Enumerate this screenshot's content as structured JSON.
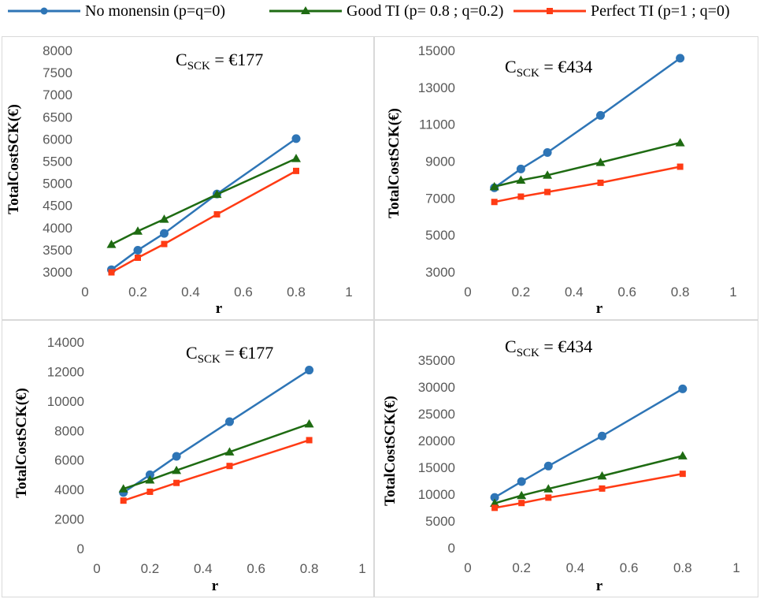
{
  "legend": [
    {
      "label": "No monensin  (p=q=0)",
      "color": "#2E75B6",
      "marker": "circle"
    },
    {
      "label": "Good TI (p= 0.8 ; q=0.2)",
      "color": "#1E6B12",
      "marker": "triangle"
    },
    {
      "label": "Perfect TI (p=1 ; q=0)",
      "color": "#FF3B14",
      "marker": "square"
    }
  ],
  "chart_data": [
    {
      "type": "line",
      "annotation": {
        "main": "C",
        "sub": "SCK",
        "value": " = €177"
      },
      "xlabel": "r",
      "ylabel": "TotalCostSCK(€)",
      "xlim": [
        0,
        1
      ],
      "ylim": [
        3000,
        8000
      ],
      "xticks": [
        "0",
        "0.2",
        "0.4",
        "0.6",
        "0.8",
        "1"
      ],
      "yticks": [
        "3000",
        "3500",
        "4000",
        "4500",
        "5000",
        "5500",
        "6000",
        "6500",
        "7000",
        "7500",
        "8000"
      ],
      "x": [
        0.1,
        0.2,
        0.3,
        0.5,
        0.8
      ],
      "series": [
        {
          "name": "No monensin  (p=q=0)",
          "values": [
            3050,
            3490,
            3870,
            4760,
            6010
          ]
        },
        {
          "name": "Good TI (p= 0.8 ; q=0.2)",
          "values": [
            3620,
            3920,
            4190,
            4750,
            5560
          ]
        },
        {
          "name": "Perfect TI (p=1 ; q=0)",
          "values": [
            2990,
            3320,
            3630,
            4300,
            5280
          ]
        }
      ]
    },
    {
      "type": "line",
      "annotation": {
        "main": "C",
        "sub": "SCK",
        "value": " = €434"
      },
      "xlabel": "r",
      "ylabel": "TotalCostSCK(€)",
      "xlim": [
        0,
        1
      ],
      "ylim": [
        3000,
        15000
      ],
      "xticks": [
        "0",
        "0.2",
        "0.4",
        "0.6",
        "0.8",
        "1"
      ],
      "yticks": [
        "3000",
        "5000",
        "7000",
        "9000",
        "11000",
        "13000",
        "15000"
      ],
      "x": [
        0.1,
        0.2,
        0.3,
        0.5,
        0.8
      ],
      "series": [
        {
          "name": "No monensin  (p=q=0)",
          "values": [
            7560,
            8580,
            9470,
            11480,
            14580
          ]
        },
        {
          "name": "Good TI (p= 0.8 ; q=0.2)",
          "values": [
            7620,
            7970,
            8240,
            8930,
            10000
          ]
        },
        {
          "name": "Perfect TI (p=1 ; q=0)",
          "values": [
            6790,
            7080,
            7330,
            7830,
            8700
          ]
        }
      ]
    },
    {
      "type": "line",
      "annotation": {
        "main": "C",
        "sub": "SCK",
        "value": " = €177"
      },
      "xlabel": "r",
      "ylabel": "TotalCostSCK(€)",
      "xlim": [
        0,
        1
      ],
      "ylim": [
        0,
        14000
      ],
      "xticks": [
        "0",
        "0.2",
        "0.4",
        "0.6",
        "0.8",
        "1"
      ],
      "yticks": [
        "0",
        "2000",
        "4000",
        "6000",
        "8000",
        "10000",
        "12000",
        "14000"
      ],
      "x": [
        0.1,
        0.2,
        0.3,
        0.5,
        0.8
      ],
      "series": [
        {
          "name": "No monensin  (p=q=0)",
          "values": [
            3800,
            5000,
            6250,
            8600,
            12100
          ]
        },
        {
          "name": "Good TI (p= 0.8 ; q=0.2)",
          "values": [
            4050,
            4650,
            5300,
            6550,
            8450
          ]
        },
        {
          "name": "Perfect TI (p=1 ; q=0)",
          "values": [
            3250,
            3850,
            4450,
            5600,
            7350
          ]
        }
      ]
    },
    {
      "type": "line",
      "annotation": {
        "main": "C",
        "sub": "SCK",
        "value": " = €434"
      },
      "xlabel": "r",
      "ylabel": "TotalCostSCK(€)",
      "xlim": [
        0,
        1
      ],
      "ylim": [
        0,
        35000
      ],
      "xticks": [
        "0",
        "0.2",
        "0.4",
        "0.6",
        "0.8",
        "1"
      ],
      "yticks": [
        "0",
        "5000",
        "10000",
        "15000",
        "20000",
        "25000",
        "30000",
        "35000"
      ],
      "x": [
        0.1,
        0.2,
        0.3,
        0.5,
        0.8
      ],
      "series": [
        {
          "name": "No monensin  (p=q=0)",
          "values": [
            9400,
            12350,
            15250,
            20850,
            29650
          ]
        },
        {
          "name": "Good TI (p= 0.8 ; q=0.2)",
          "values": [
            8300,
            9750,
            11000,
            13400,
            17150
          ]
        },
        {
          "name": "Perfect TI (p=1 ; q=0)",
          "values": [
            7450,
            8350,
            9350,
            11050,
            13800
          ]
        }
      ]
    }
  ]
}
